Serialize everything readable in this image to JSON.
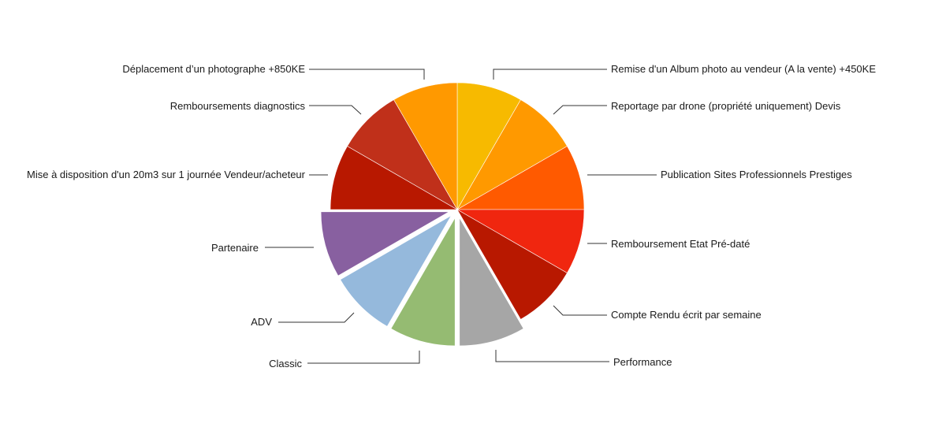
{
  "chart_data": {
    "type": "pie",
    "title": "",
    "legend": "none",
    "slices": [
      {
        "label": "Remise d'un Album photo au vendeur (A la vente) +450KE",
        "value": 1,
        "color": "#F7BA00",
        "exploded": false
      },
      {
        "label": "Reportage par drone (propriété uniquement) Devis",
        "value": 1,
        "color": "#FF9900",
        "exploded": false
      },
      {
        "label": "Publication Sites Professionnels Prestiges",
        "value": 1,
        "color": "#FF5A00",
        "exploded": false
      },
      {
        "label": "Remboursement Etat Pré-daté",
        "value": 1,
        "color": "#F0260F",
        "exploded": false
      },
      {
        "label": "Compte Rendu écrit par semaine",
        "value": 1,
        "color": "#B81800",
        "exploded": false
      },
      {
        "label": "Performance",
        "value": 1,
        "color": "#A6A6A6",
        "exploded": true
      },
      {
        "label": "Classic",
        "value": 1,
        "color": "#95BB72",
        "exploded": true
      },
      {
        "label": "ADV",
        "value": 1,
        "color": "#95B9DC",
        "exploded": true
      },
      {
        "label": "Partenaire",
        "value": 1,
        "color": "#8860A0",
        "exploded": true
      },
      {
        "label": "Mise à disposition d'un 20m3 sur 1 journée Vendeur/acheteur",
        "value": 1,
        "color": "#B81800",
        "exploded": false
      },
      {
        "label": "Remboursements diagnostics",
        "value": 1,
        "color": "#C0301A",
        "exploded": false
      },
      {
        "label": "Déplacement d’un photographe +850KE",
        "value": 1,
        "color": "#FF9900",
        "exploded": false
      }
    ]
  }
}
